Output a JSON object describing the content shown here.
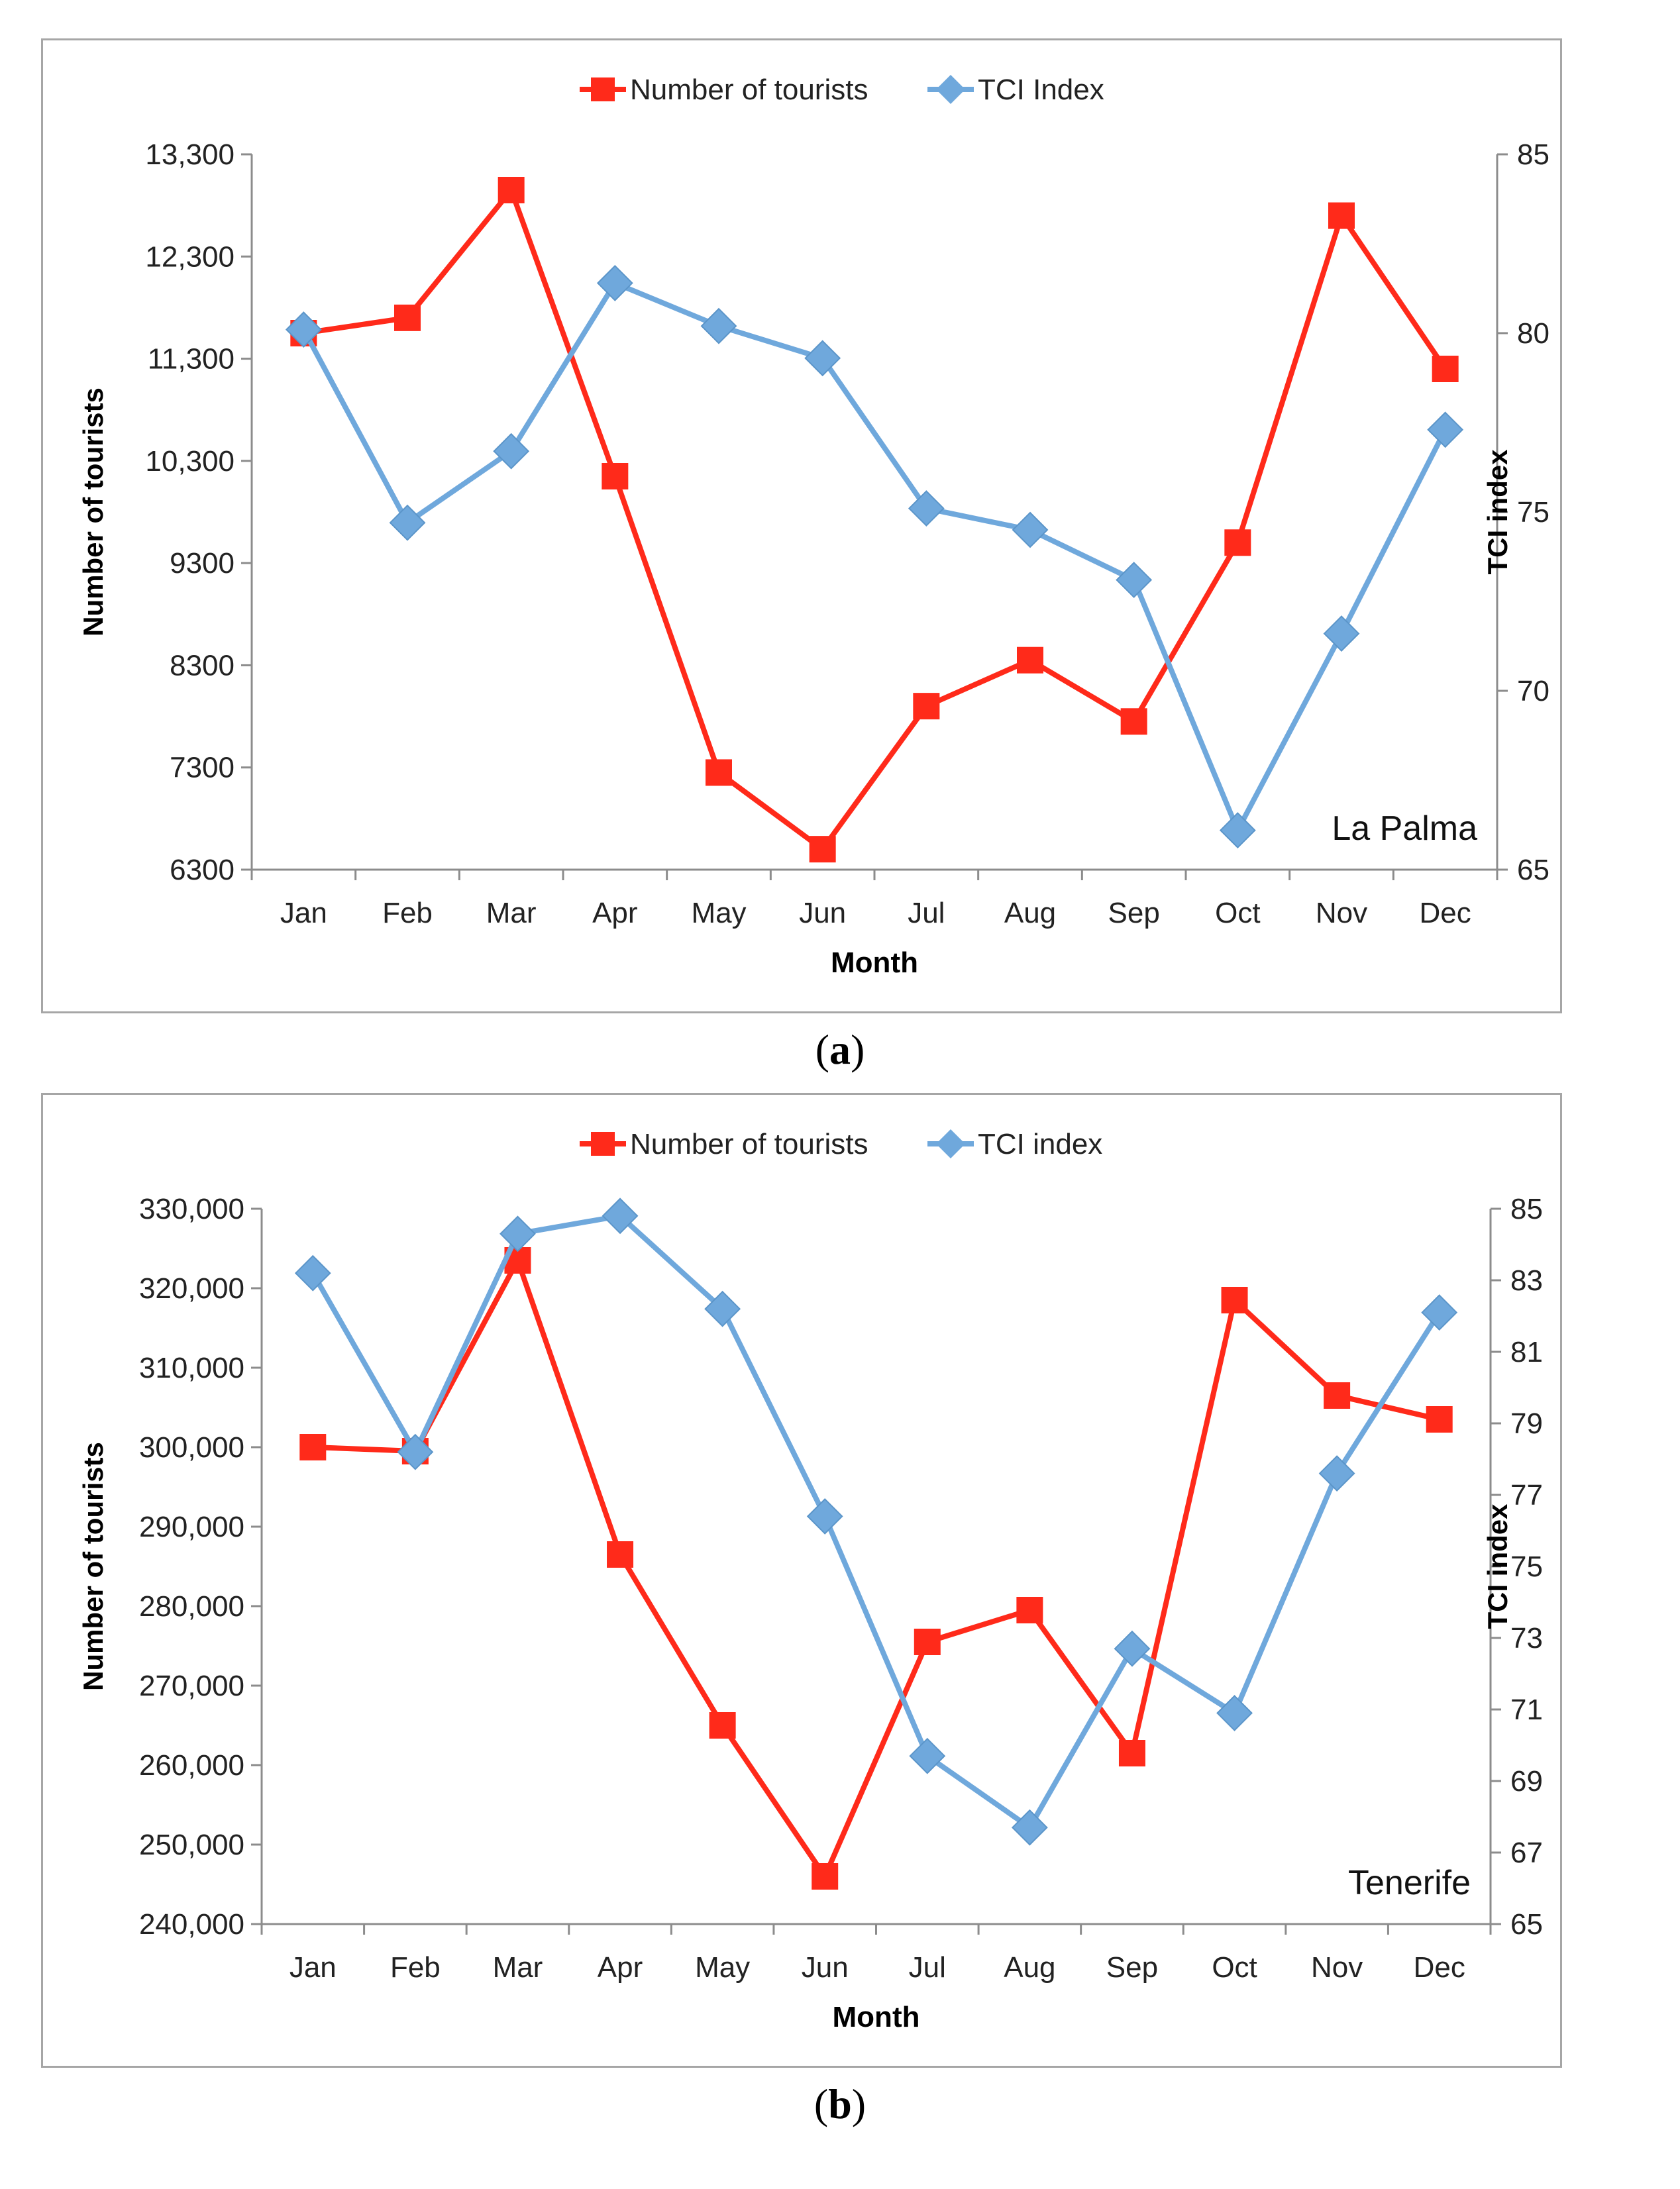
{
  "chart_data": [
    {
      "type": "line",
      "panel_label": "a",
      "annotation": "La Palma",
      "categories": [
        "Jan",
        "Feb",
        "Mar",
        "Apr",
        "May",
        "Jun",
        "Jul",
        "Aug",
        "Sep",
        "Oct",
        "Nov",
        "Dec"
      ],
      "xlabel": "Month",
      "ylabel_left": "Number of tourists",
      "ylabel_right": "TCI index",
      "yticks_left": [
        "6300",
        "7300",
        "8300",
        "9300",
        "10,300",
        "11,300",
        "12,300",
        "13,300"
      ],
      "yticks_right": [
        "65",
        "70",
        "75",
        "80",
        "85"
      ],
      "ylim_left": [
        6300,
        13300
      ],
      "ylim_right": [
        65,
        85
      ],
      "legend_position": "top-center",
      "series": [
        {
          "name": "Number of tourists",
          "axis": "left",
          "color": "#ff2a1a",
          "marker": "square",
          "values": [
            11550,
            11700,
            12950,
            10150,
            7250,
            6500,
            7900,
            8350,
            7750,
            9500,
            12700,
            11200
          ]
        },
        {
          "name": "TCI Index",
          "axis": "right",
          "color": "#6fa8dc",
          "marker": "diamond",
          "values": [
            80.1,
            74.7,
            76.7,
            81.4,
            80.2,
            79.3,
            75.1,
            74.5,
            73.1,
            66.1,
            71.6,
            77.3
          ]
        }
      ]
    },
    {
      "type": "line",
      "panel_label": "b",
      "annotation": "Tenerife",
      "categories": [
        "Jan",
        "Feb",
        "Mar",
        "Apr",
        "May",
        "Jun",
        "Jul",
        "Aug",
        "Sep",
        "Oct",
        "Nov",
        "Dec"
      ],
      "xlabel": "Month",
      "ylabel_left": "Number of tourists",
      "ylabel_right": "TCI index",
      "yticks_left": [
        "240,000",
        "250,000",
        "260,000",
        "270,000",
        "280,000",
        "290,000",
        "300,000",
        "310,000",
        "320,000",
        "330,000"
      ],
      "yticks_right": [
        "65",
        "67",
        "69",
        "71",
        "73",
        "75",
        "77",
        "79",
        "81",
        "83",
        "85"
      ],
      "ylim_left": [
        240000,
        330000
      ],
      "ylim_right": [
        65,
        85
      ],
      "legend_position": "top-center",
      "series": [
        {
          "name": "Number of tourists",
          "axis": "left",
          "color": "#ff2a1a",
          "marker": "square",
          "values": [
            300000,
            299500,
            323500,
            286500,
            265000,
            246000,
            275500,
            279500,
            261500,
            318500,
            306500,
            303500
          ]
        },
        {
          "name": "TCI index",
          "axis": "right",
          "color": "#6fa8dc",
          "marker": "diamond",
          "values": [
            83.2,
            78.2,
            84.3,
            84.8,
            82.2,
            76.4,
            69.7,
            67.7,
            72.7,
            70.9,
            77.6,
            82.1
          ]
        }
      ]
    }
  ]
}
